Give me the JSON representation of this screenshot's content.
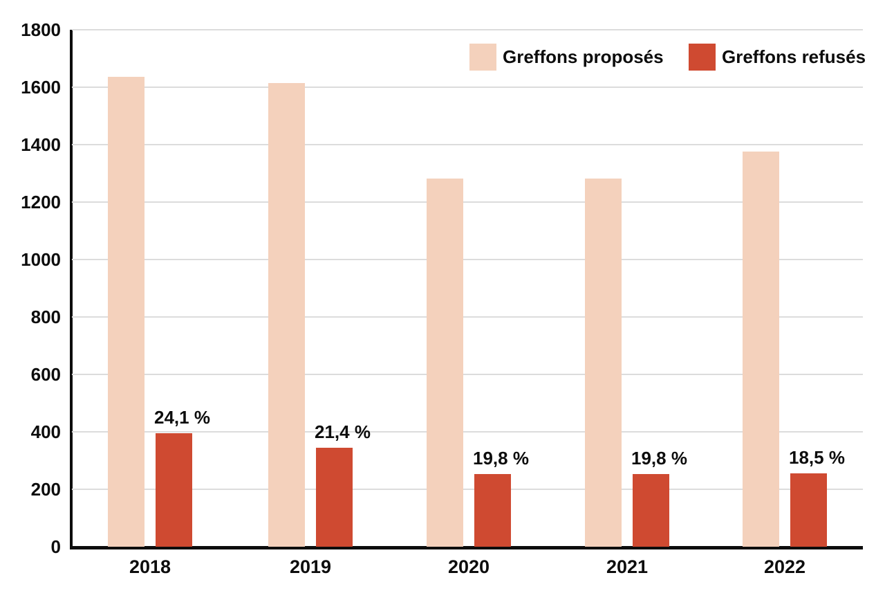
{
  "chart_data": {
    "type": "bar",
    "title": "",
    "categories": [
      "2018",
      "2019",
      "2020",
      "2021",
      "2022"
    ],
    "series": [
      {
        "name": "Greffons proposés",
        "color": "#f4d1bc",
        "values": [
          1635,
          1614,
          1283,
          1283,
          1376
        ]
      },
      {
        "name": "Greffons refusés",
        "color": "#cf4a31",
        "values": [
          394,
          345,
          254,
          254,
          255
        ],
        "value_labels": [
          "24,1 %",
          "21,4 %",
          "19,8 %",
          "19,8 %",
          "18,5 %"
        ]
      }
    ],
    "xlabel": "",
    "ylabel": "",
    "ylim": [
      0,
      1800
    ],
    "yticks": [
      0,
      200,
      400,
      600,
      800,
      1000,
      1200,
      1400,
      1600,
      1800
    ],
    "grid": true,
    "legend_position": "top-right",
    "colors": {
      "grid": "#dcdcdc",
      "axis": "#0d0d0d",
      "text": "#0d0d0d"
    }
  }
}
